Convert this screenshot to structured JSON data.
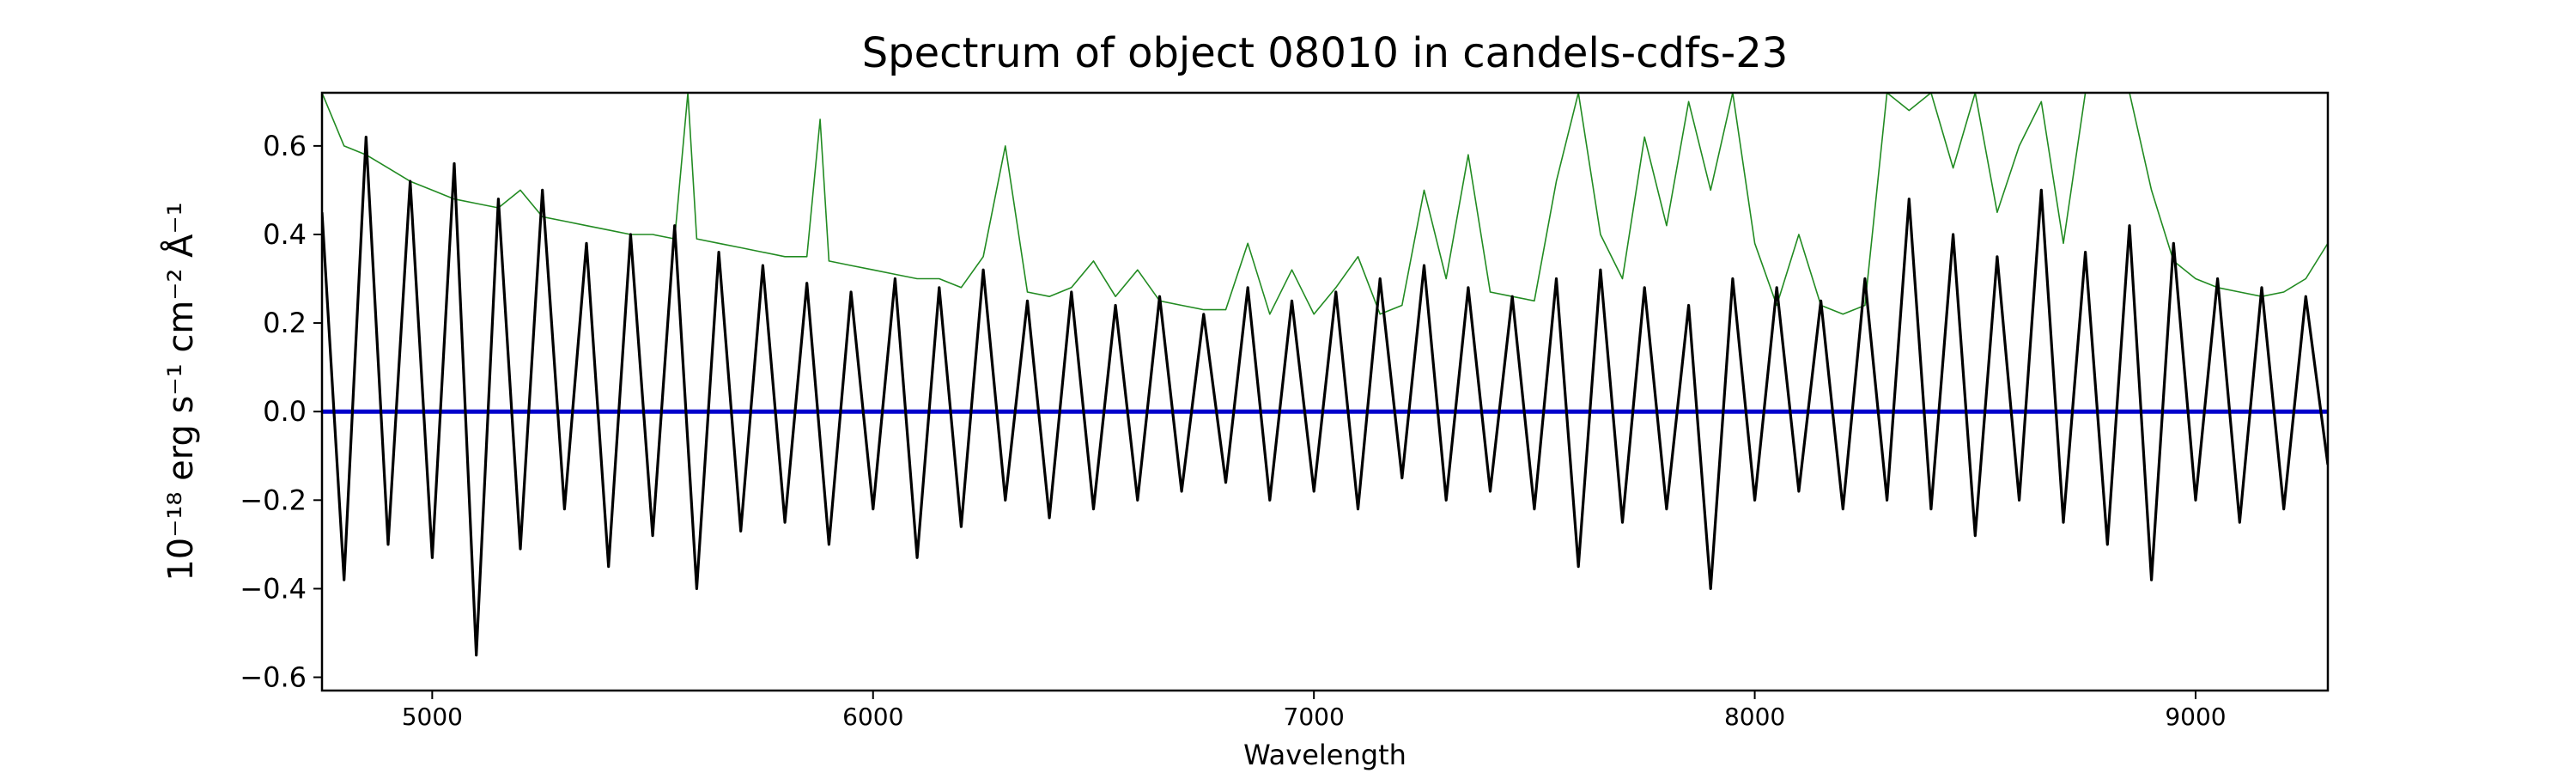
{
  "chart_data": {
    "type": "line",
    "title": "Spectrum of object 08010 in candels-cdfs-23",
    "xlabel": "Wavelength",
    "ylabel": "10⁻¹⁸ erg s⁻¹ cm⁻² Å⁻¹",
    "xlim": [
      4750,
      9300
    ],
    "ylim": [
      -0.63,
      0.72
    ],
    "x_ticks": [
      5000,
      6000,
      7000,
      8000,
      9000
    ],
    "y_ticks": [
      -0.6,
      -0.4,
      -0.2,
      0.0,
      0.2,
      0.4,
      0.6
    ],
    "x_tick_labels": [
      "5000",
      "6000",
      "7000",
      "8000",
      "9000"
    ],
    "y_tick_labels": [
      "−0.6",
      "−0.4",
      "−0.2",
      "0.0",
      "0.2",
      "0.4",
      "0.6"
    ],
    "grid": false,
    "colors": {
      "flux": "#000000",
      "error": "#228b22",
      "zero": "#0000cc",
      "axes": "#000000"
    },
    "series": [
      {
        "role": "flux",
        "x": [
          4750,
          4800,
          4850,
          4900,
          4950,
          5000,
          5050,
          5100,
          5150,
          5200,
          5250,
          5300,
          5350,
          5400,
          5450,
          5500,
          5550,
          5600,
          5650,
          5700,
          5750,
          5800,
          5850,
          5900,
          5950,
          6000,
          6050,
          6100,
          6150,
          6200,
          6250,
          6300,
          6350,
          6400,
          6450,
          6500,
          6550,
          6600,
          6650,
          6700,
          6750,
          6800,
          6850,
          6900,
          6950,
          7000,
          7050,
          7100,
          7150,
          7200,
          7250,
          7300,
          7350,
          7400,
          7450,
          7500,
          7550,
          7600,
          7650,
          7700,
          7750,
          7800,
          7850,
          7900,
          7950,
          8000,
          8050,
          8100,
          8150,
          8200,
          8250,
          8300,
          8350,
          8400,
          8450,
          8500,
          8550,
          8600,
          8650,
          8700,
          8750,
          8800,
          8850,
          8900,
          8950,
          9000,
          9050,
          9100,
          9150,
          9200,
          9250,
          9300
        ],
        "y": [
          0.45,
          -0.38,
          0.62,
          -0.3,
          0.52,
          -0.33,
          0.56,
          -0.55,
          0.48,
          -0.31,
          0.5,
          -0.22,
          0.38,
          -0.35,
          0.4,
          -0.28,
          0.42,
          -0.4,
          0.36,
          -0.27,
          0.33,
          -0.25,
          0.29,
          -0.3,
          0.27,
          -0.22,
          0.3,
          -0.33,
          0.28,
          -0.26,
          0.32,
          -0.2,
          0.25,
          -0.24,
          0.27,
          -0.22,
          0.24,
          -0.2,
          0.26,
          -0.18,
          0.22,
          -0.16,
          0.28,
          -0.2,
          0.25,
          -0.18,
          0.27,
          -0.22,
          0.3,
          -0.15,
          0.33,
          -0.2,
          0.28,
          -0.18,
          0.26,
          -0.22,
          0.3,
          -0.35,
          0.32,
          -0.25,
          0.28,
          -0.22,
          0.24,
          -0.4,
          0.3,
          -0.2,
          0.28,
          -0.18,
          0.25,
          -0.22,
          0.3,
          -0.2,
          0.48,
          -0.22,
          0.4,
          -0.28,
          0.35,
          -0.2,
          0.5,
          -0.25,
          0.36,
          -0.3,
          0.42,
          -0.38,
          0.38,
          -0.2,
          0.3,
          -0.25,
          0.28,
          -0.22,
          0.26,
          -0.12
        ]
      },
      {
        "role": "error",
        "x": [
          4750,
          4800,
          4850,
          4900,
          4950,
          5000,
          5050,
          5100,
          5150,
          5200,
          5250,
          5300,
          5350,
          5400,
          5450,
          5500,
          5550,
          5580,
          5600,
          5650,
          5700,
          5750,
          5800,
          5850,
          5880,
          5900,
          5950,
          6000,
          6050,
          6100,
          6150,
          6200,
          6250,
          6300,
          6350,
          6400,
          6450,
          6500,
          6550,
          6600,
          6650,
          6700,
          6750,
          6800,
          6850,
          6900,
          6950,
          7000,
          7050,
          7100,
          7150,
          7200,
          7250,
          7300,
          7350,
          7400,
          7450,
          7500,
          7550,
          7600,
          7650,
          7700,
          7750,
          7800,
          7850,
          7900,
          7950,
          8000,
          8050,
          8100,
          8150,
          8200,
          8250,
          8300,
          8350,
          8400,
          8450,
          8500,
          8550,
          8600,
          8650,
          8700,
          8750,
          8800,
          8850,
          8900,
          8950,
          9000,
          9050,
          9100,
          9150,
          9200,
          9250,
          9300
        ],
        "y": [
          0.72,
          0.6,
          0.58,
          0.55,
          0.52,
          0.5,
          0.48,
          0.47,
          0.46,
          0.5,
          0.44,
          0.43,
          0.42,
          0.41,
          0.4,
          0.4,
          0.39,
          0.72,
          0.39,
          0.38,
          0.37,
          0.36,
          0.35,
          0.35,
          0.66,
          0.34,
          0.33,
          0.32,
          0.31,
          0.3,
          0.3,
          0.28,
          0.35,
          0.6,
          0.27,
          0.26,
          0.28,
          0.34,
          0.26,
          0.32,
          0.25,
          0.24,
          0.23,
          0.23,
          0.38,
          0.22,
          0.32,
          0.22,
          0.28,
          0.35,
          0.22,
          0.24,
          0.5,
          0.3,
          0.58,
          0.27,
          0.26,
          0.25,
          0.52,
          0.72,
          0.4,
          0.3,
          0.62,
          0.42,
          0.7,
          0.5,
          0.72,
          0.38,
          0.24,
          0.4,
          0.24,
          0.22,
          0.24,
          0.72,
          0.68,
          0.72,
          0.55,
          0.72,
          0.45,
          0.6,
          0.7,
          0.38,
          0.72,
          0.72,
          0.72,
          0.5,
          0.34,
          0.3,
          0.28,
          0.27,
          0.26,
          0.27,
          0.3,
          0.38
        ]
      },
      {
        "role": "zero",
        "x": [
          4750,
          9300
        ],
        "y": [
          0,
          0
        ]
      }
    ]
  }
}
